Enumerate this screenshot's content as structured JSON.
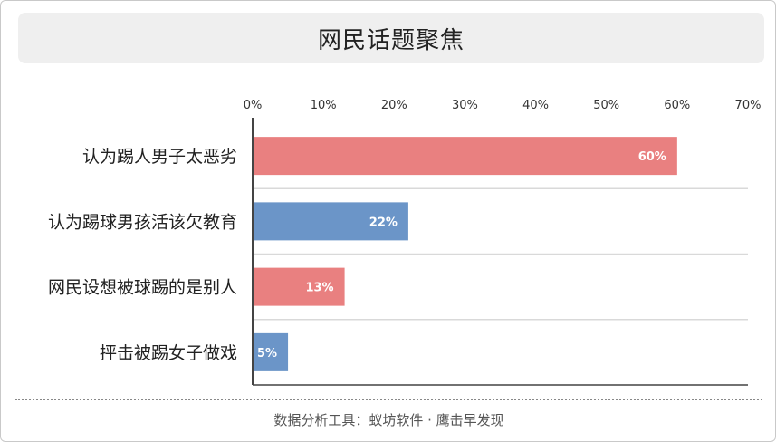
{
  "header": {
    "title": "网民话题聚焦"
  },
  "footer": {
    "source": "数据分析工具：蚁坊软件 · 鹰击早发现"
  },
  "colors": {
    "pink": "#e98080",
    "blue": "#6b95c8",
    "axis": "#444444",
    "grid": "#d9d9d9"
  },
  "chart_data": {
    "type": "bar",
    "orientation": "horizontal",
    "categories": [
      "认为踢人男子太恶劣",
      "认为踢球男孩活该欠教育",
      "网民设想被球踢的是别人",
      "抨击被踢女子做戏"
    ],
    "values": [
      60,
      22,
      13,
      5
    ],
    "value_labels": [
      "60%",
      "22%",
      "13%",
      "5%"
    ],
    "bar_colors": [
      "#e98080",
      "#6b95c8",
      "#e98080",
      "#6b95c8"
    ],
    "xlim": [
      0,
      70
    ],
    "ticks": [
      0,
      10,
      20,
      30,
      40,
      50,
      60,
      70
    ],
    "tick_labels": [
      "0%",
      "10%",
      "20%",
      "30%",
      "40%",
      "50%",
      "60%",
      "70%"
    ],
    "axis_position": "top",
    "grid": true
  }
}
